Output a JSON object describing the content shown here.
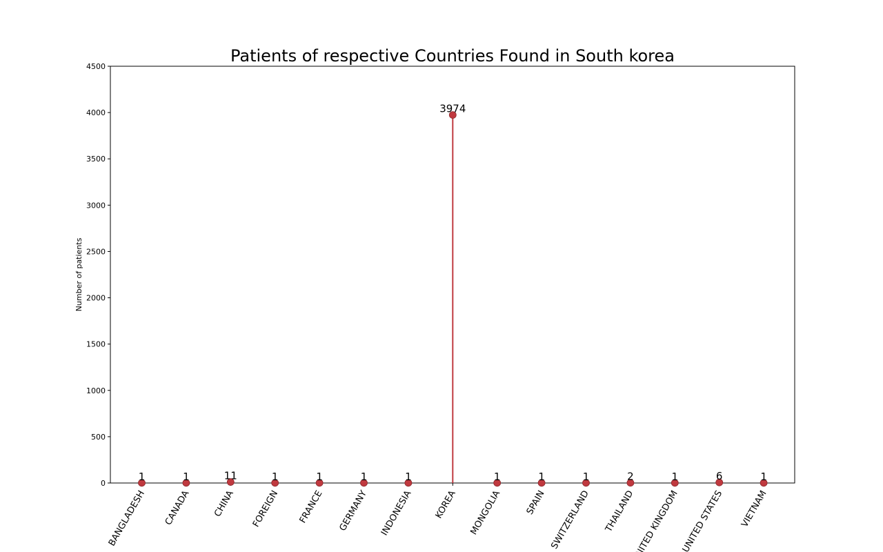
{
  "chart_data": {
    "type": "lollipop",
    "title": "Patients of respective Countries Found in South korea",
    "xlabel": "",
    "ylabel": "Number of patients",
    "ylim": [
      0,
      4500
    ],
    "yticks": [
      0,
      500,
      1000,
      1500,
      2000,
      2500,
      3000,
      3500,
      4000,
      4500
    ],
    "categories": [
      "BANGLADESH",
      "CANADA",
      "CHINA",
      "FOREIGN",
      "FRANCE",
      "GERMANY",
      "INDONESIA",
      "KOREA",
      "MONGOLIA",
      "SPAIN",
      "SWITZERLAND",
      "THAILAND",
      "UNITED KINGDOM",
      "UNITED STATES",
      "VIETNAM"
    ],
    "values": [
      1,
      1,
      11,
      1,
      1,
      1,
      1,
      3974,
      1,
      1,
      1,
      2,
      1,
      6,
      1
    ],
    "grid": false,
    "colors": {
      "stem": "#c0393f",
      "marker": "#c0393f",
      "marker_edge": "#8b2a2e"
    }
  }
}
